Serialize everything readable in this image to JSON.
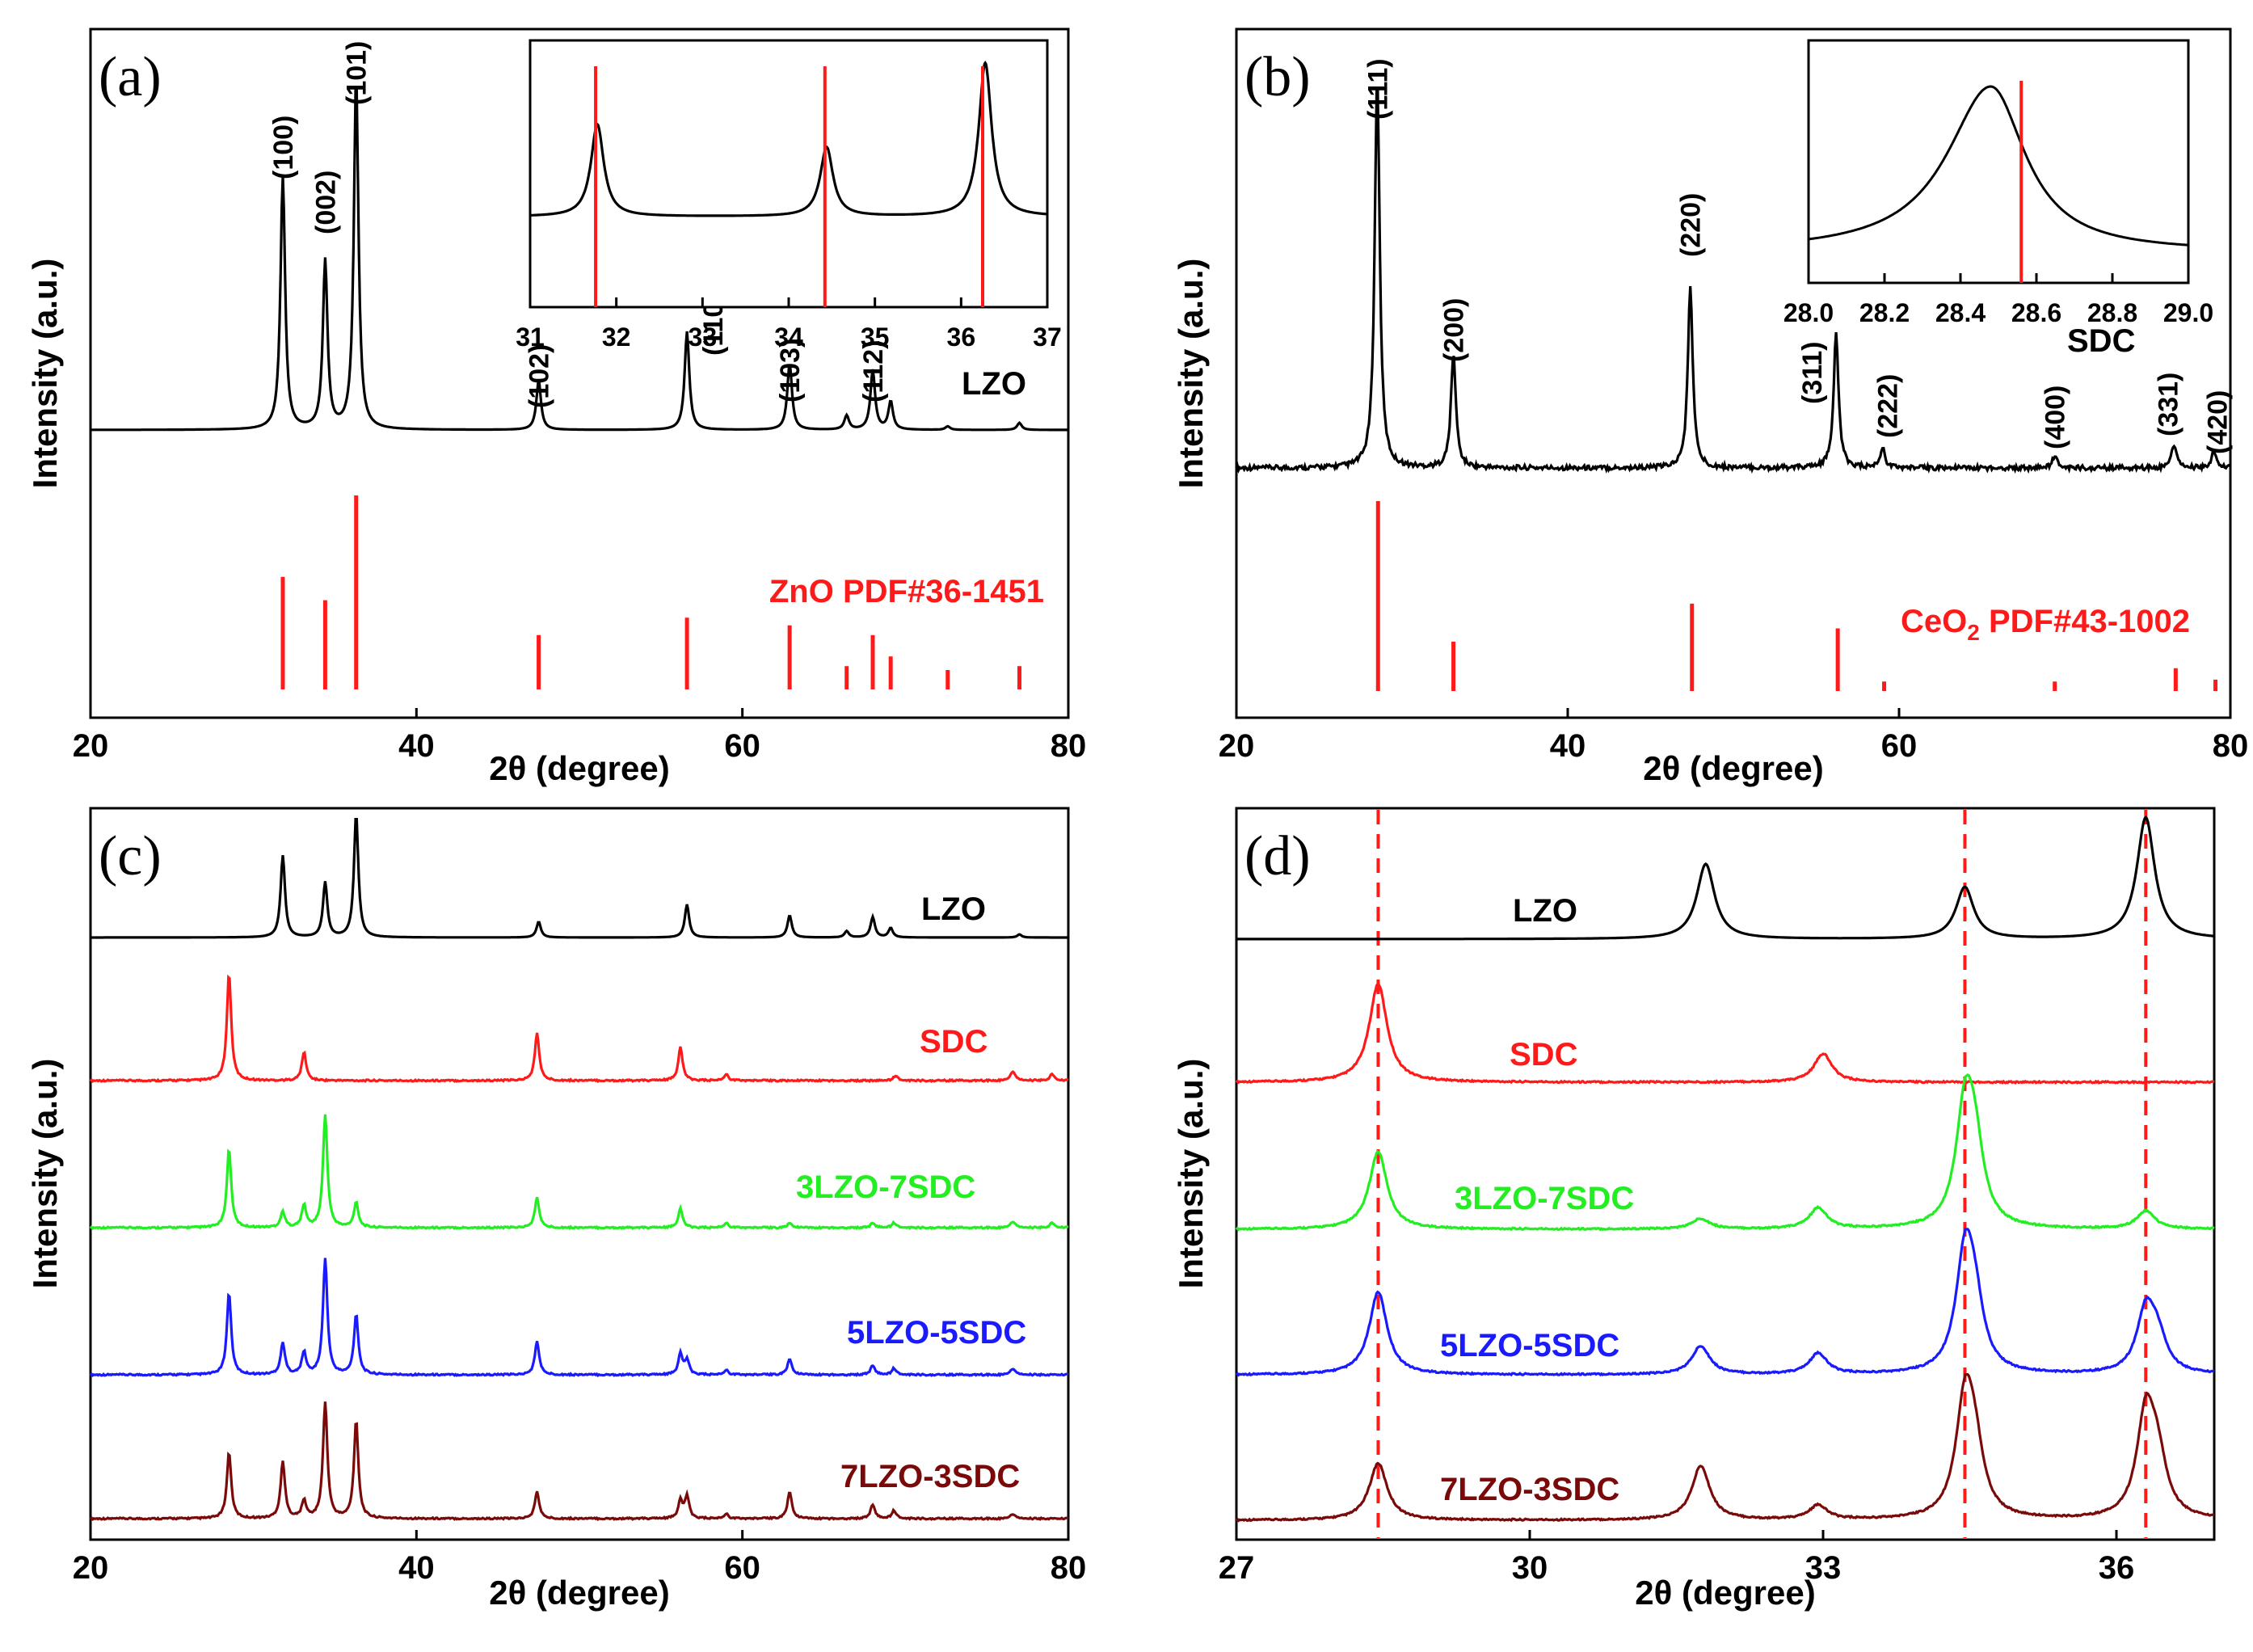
{
  "colors": {
    "black": "#000000",
    "red": "#ff1a1a",
    "green": "#22ee22",
    "blue": "#1a1aff",
    "darkred": "#7a0a0a"
  },
  "chart_data": [
    {
      "id": "a",
      "type": "line",
      "panel_label": "(a)",
      "xlabel": "2θ (degree)",
      "ylabel": "Intensity (a.u.)",
      "xlim": [
        20,
        80
      ],
      "xticks": [
        "20",
        "40",
        "60",
        "80"
      ],
      "series": [
        {
          "name": "LZO",
          "color": "black",
          "peaks": [
            [
              31.8,
              0.72
            ],
            [
              34.4,
              0.48
            ],
            [
              36.3,
              1.0
            ],
            [
              47.5,
              0.14
            ],
            [
              56.6,
              0.28
            ],
            [
              62.9,
              0.19
            ],
            [
              66.4,
              0.04
            ],
            [
              68.0,
              0.17
            ],
            [
              69.1,
              0.08
            ],
            [
              72.6,
              0.01
            ],
            [
              77.0,
              0.02
            ]
          ]
        }
      ],
      "reference": {
        "name": "ZnO PDF#36-1451",
        "color": "red",
        "lines": [
          [
            31.8,
            0.58
          ],
          [
            34.4,
            0.46
          ],
          [
            36.3,
            1.0
          ],
          [
            47.5,
            0.28
          ],
          [
            56.6,
            0.37
          ],
          [
            62.9,
            0.33
          ],
          [
            66.4,
            0.12
          ],
          [
            68.0,
            0.28
          ],
          [
            69.1,
            0.17
          ],
          [
            72.6,
            0.1
          ],
          [
            77.0,
            0.12
          ]
        ]
      },
      "annotations": [
        {
          "text": "(100)",
          "x": 31.8
        },
        {
          "text": "(002)",
          "x": 34.4
        },
        {
          "text": "(101)",
          "x": 36.3
        },
        {
          "text": "(102)",
          "x": 47.5
        },
        {
          "text": "(110)",
          "x": 56.6
        },
        {
          "text": "(103)",
          "x": 62.9
        },
        {
          "text": "(112)",
          "x": 68.0
        }
      ],
      "inset": {
        "xlim": [
          31,
          37
        ],
        "xticks": [
          "31",
          "32",
          "33",
          "34",
          "35",
          "36",
          "37"
        ],
        "peaks": [
          [
            31.78,
            0.6
          ],
          [
            34.44,
            0.45
          ],
          [
            36.28,
            1.0
          ]
        ],
        "ref_lines": [
          31.76,
          34.42,
          36.25
        ]
      }
    },
    {
      "id": "b",
      "type": "line",
      "panel_label": "(b)",
      "xlabel": "2θ (degree)",
      "ylabel": "Intensity (a.u.)",
      "xlim": [
        20,
        80
      ],
      "xticks": [
        "20",
        "40",
        "60",
        "80"
      ],
      "series": [
        {
          "name": "SDC",
          "color": "black",
          "peaks": [
            [
              28.5,
              1.0
            ],
            [
              33.1,
              0.29
            ],
            [
              47.4,
              0.46
            ],
            [
              56.2,
              0.34
            ],
            [
              59.0,
              0.05
            ],
            [
              69.4,
              0.03
            ],
            [
              76.6,
              0.06
            ],
            [
              79.0,
              0.04
            ]
          ]
        }
      ],
      "reference": {
        "name": "CeO2 PDF#43-1002",
        "name_main": "CeO",
        "name_sub": "2",
        "name_rest": " PDF#43-1002",
        "color": "red",
        "lines": [
          [
            28.55,
            1.0
          ],
          [
            33.1,
            0.26
          ],
          [
            47.5,
            0.46
          ],
          [
            56.3,
            0.33
          ],
          [
            59.1,
            0.05
          ],
          [
            69.4,
            0.05
          ],
          [
            76.7,
            0.12
          ],
          [
            79.1,
            0.06
          ]
        ]
      },
      "annotations": [
        {
          "text": "(111)",
          "x": 28.5
        },
        {
          "text": "(200)",
          "x": 33.1
        },
        {
          "text": "(220)",
          "x": 47.4
        },
        {
          "text": "(311)",
          "x": 56.2
        },
        {
          "text": "(222)",
          "x": 59.0
        },
        {
          "text": "(400)",
          "x": 69.4
        },
        {
          "text": "(331)",
          "x": 76.6
        },
        {
          "text": "(420)",
          "x": 79.0
        }
      ],
      "inset": {
        "xlim": [
          28.0,
          29.0
        ],
        "xticks": [
          "28.0",
          "28.2",
          "28.4",
          "28.6",
          "28.8",
          "29.0"
        ],
        "peak_center": 28.48,
        "ref_line": 28.56
      }
    },
    {
      "id": "c",
      "type": "line",
      "panel_label": "(c)",
      "xlabel": "2θ (degree)",
      "ylabel": "Intensity (a.u.)",
      "xlim": [
        20,
        80
      ],
      "xticks": [
        "20",
        "40",
        "60",
        "80"
      ],
      "series": [
        {
          "name": "LZO",
          "color": "black",
          "peaks": [
            [
              31.8,
              0.52
            ],
            [
              34.4,
              0.35
            ],
            [
              36.3,
              0.78
            ],
            [
              47.5,
              0.1
            ],
            [
              56.6,
              0.21
            ],
            [
              62.9,
              0.14
            ],
            [
              66.4,
              0.04
            ],
            [
              68.0,
              0.13
            ],
            [
              69.1,
              0.06
            ],
            [
              77.0,
              0.02
            ]
          ]
        },
        {
          "name": "SDC",
          "color": "red",
          "peaks": [
            [
              28.5,
              0.68
            ],
            [
              33.1,
              0.18
            ],
            [
              47.4,
              0.3
            ],
            [
              56.2,
              0.21
            ],
            [
              59.0,
              0.04
            ],
            [
              69.4,
              0.03
            ],
            [
              76.6,
              0.06
            ],
            [
              79.0,
              0.04
            ]
          ]
        },
        {
          "name": "3LZO-7SDC",
          "color": "green",
          "peaks": [
            [
              28.5,
              0.5
            ],
            [
              31.8,
              0.1
            ],
            [
              33.1,
              0.14
            ],
            [
              34.4,
              0.72
            ],
            [
              36.3,
              0.16
            ],
            [
              47.4,
              0.19
            ],
            [
              56.2,
              0.12
            ],
            [
              59.0,
              0.03
            ],
            [
              62.9,
              0.03
            ],
            [
              68.0,
              0.03
            ],
            [
              69.3,
              0.03
            ],
            [
              76.6,
              0.04
            ],
            [
              79.0,
              0.03
            ]
          ]
        },
        {
          "name": "5LZO-5SDC",
          "color": "blue",
          "peaks": [
            [
              28.5,
              0.52
            ],
            [
              31.8,
              0.2
            ],
            [
              33.1,
              0.14
            ],
            [
              34.4,
              0.74
            ],
            [
              36.3,
              0.38
            ],
            [
              47.4,
              0.21
            ],
            [
              56.2,
              0.13
            ],
            [
              56.6,
              0.09
            ],
            [
              59.0,
              0.03
            ],
            [
              62.9,
              0.1
            ],
            [
              68.0,
              0.06
            ],
            [
              69.3,
              0.04
            ],
            [
              76.6,
              0.04
            ]
          ]
        },
        {
          "name": "7LZO-3SDC",
          "color": "darkred",
          "peaks": [
            [
              28.5,
              0.42
            ],
            [
              31.8,
              0.36
            ],
            [
              33.1,
              0.11
            ],
            [
              34.4,
              0.74
            ],
            [
              36.3,
              0.62
            ],
            [
              47.4,
              0.17
            ],
            [
              56.2,
              0.11
            ],
            [
              56.6,
              0.14
            ],
            [
              59.0,
              0.03
            ],
            [
              62.9,
              0.17
            ],
            [
              68.0,
              0.09
            ],
            [
              69.3,
              0.05
            ],
            [
              76.6,
              0.03
            ]
          ]
        }
      ]
    },
    {
      "id": "d",
      "type": "line",
      "panel_label": "(d)",
      "xlabel": "2θ (degree)",
      "ylabel": "Intensity (a.u.)",
      "xlim": [
        27,
        37
      ],
      "xticks": [
        "27",
        "30",
        "33",
        "36"
      ],
      "dashed_lines": [
        28.45,
        34.45,
        36.3
      ],
      "series": [
        {
          "name": "LZO",
          "color": "black",
          "peaks": [
            [
              31.8,
              0.58
            ],
            [
              34.45,
              0.4
            ],
            [
              36.3,
              0.94
            ]
          ]
        },
        {
          "name": "SDC",
          "color": "red",
          "peaks": [
            [
              28.45,
              0.76
            ],
            [
              33.0,
              0.22
            ]
          ]
        },
        {
          "name": "3LZO-7SDC",
          "color": "green",
          "peaks": [
            [
              28.45,
              0.6
            ],
            [
              31.75,
              0.08
            ],
            [
              32.95,
              0.16
            ],
            [
              34.45,
              0.86
            ],
            [
              34.55,
              0.55
            ],
            [
              36.3,
              0.14
            ]
          ]
        },
        {
          "name": "5LZO-5SDC",
          "color": "blue",
          "peaks": [
            [
              28.45,
              0.64
            ],
            [
              31.75,
              0.22
            ],
            [
              32.95,
              0.16
            ],
            [
              34.45,
              0.86
            ],
            [
              34.55,
              0.45
            ],
            [
              36.3,
              0.47
            ],
            [
              36.42,
              0.25
            ]
          ]
        },
        {
          "name": "7LZO-3SDC",
          "color": "darkred",
          "peaks": [
            [
              28.45,
              0.44
            ],
            [
              31.75,
              0.42
            ],
            [
              32.95,
              0.11
            ],
            [
              34.45,
              0.86
            ],
            [
              34.55,
              0.45
            ],
            [
              36.3,
              0.78
            ],
            [
              36.42,
              0.4
            ]
          ]
        }
      ]
    }
  ]
}
